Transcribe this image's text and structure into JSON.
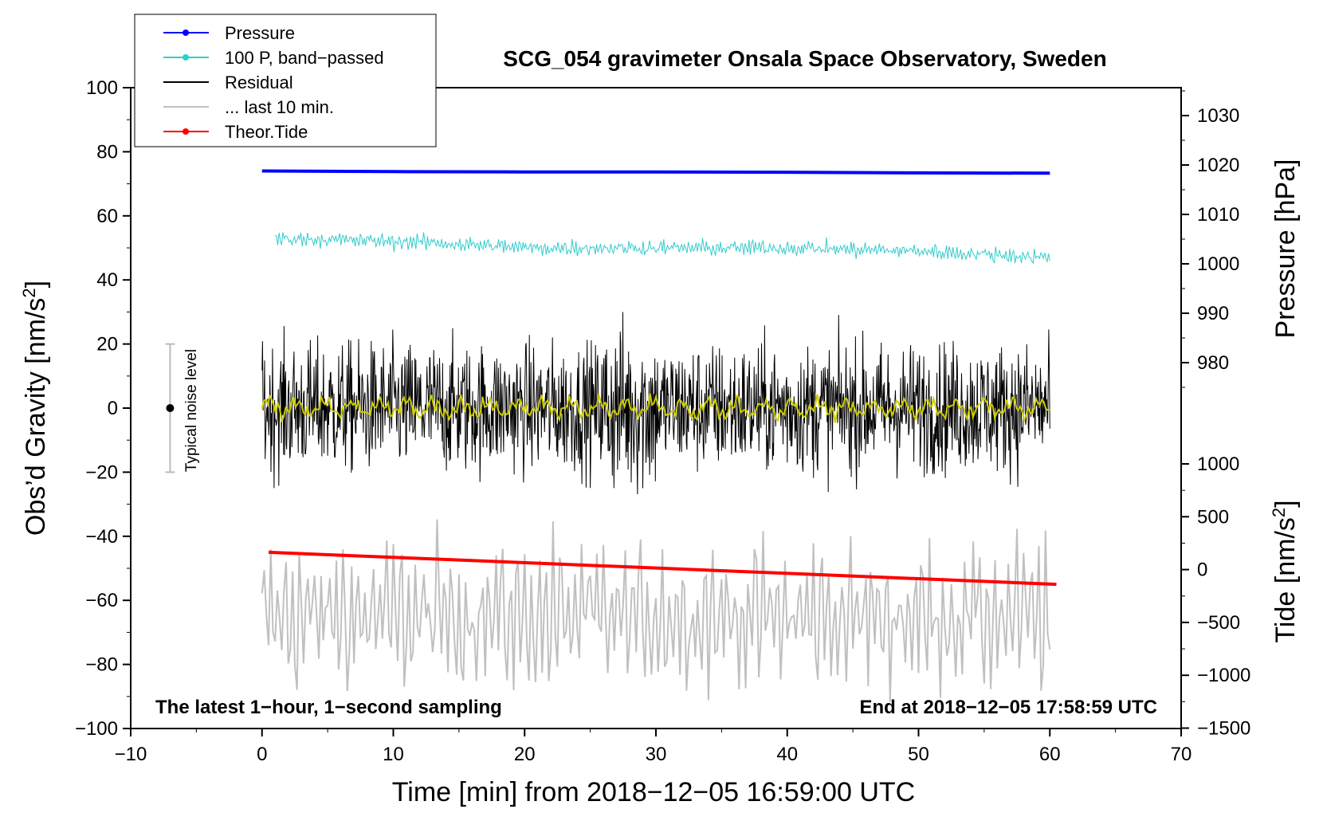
{
  "chart_data": {
    "type": "line",
    "title": "SCG_054 gravimeter Onsala Space Observatory, Sweden",
    "xlabel": "Time [min] from 2018−12−05 16:59:00 UTC",
    "ylabel": "Obs’d Gravity [nm/s",
    "ylabel_sup": "2",
    "ylabel_end": "]",
    "xlim": [
      -10,
      70
    ],
    "ylim": [
      -100,
      100
    ],
    "x_ticks": [
      "−10",
      "0",
      "10",
      "20",
      "30",
      "40",
      "50",
      "60",
      "70"
    ],
    "y_ticks": [
      "100",
      "80",
      "60",
      "40",
      "20",
      "0",
      "−20",
      "−40",
      "−60",
      "−80",
      "−100"
    ],
    "pressure_axis": {
      "label": "Pressure [hPa]",
      "ticks": [
        "1030",
        "1020",
        "1010",
        "1000",
        "990",
        "980"
      ]
    },
    "tide_axis": {
      "label": "Tide [nm/s",
      "label_sup": "2",
      "label_end": "]",
      "ticks": [
        "1000",
        "500",
        "0",
        "−500",
        "−1000",
        "−1500"
      ]
    },
    "legend": [
      {
        "label": "Pressure",
        "color": "#0000ff",
        "marker": true
      },
      {
        "label": "100 P, band−passed",
        "color": "#33cccc",
        "marker": true
      },
      {
        "label": "Residual",
        "color": "#000000",
        "marker": false
      },
      {
        "label": "... last 10 min.",
        "color": "#c0c0c0",
        "marker": false
      },
      {
        "label": "Theor.Tide",
        "color": "#ff0000",
        "marker": true
      }
    ],
    "noise_bar": {
      "label": "Typical noise level",
      "center": 0,
      "low": -20,
      "high": 20,
      "x": -7
    },
    "series": [
      {
        "name": "Pressure",
        "color": "#0000ff",
        "x": [
          0,
          10,
          20,
          30,
          40,
          50,
          60
        ],
        "values": [
          74.0,
          73.8,
          73.7,
          73.7,
          73.6,
          73.4,
          73.3
        ]
      },
      {
        "name": "100 P, band-passed",
        "color": "#33cccc",
        "x_range": [
          1,
          60
        ],
        "trend": [
          53,
          52,
          50,
          50,
          50,
          49,
          47
        ],
        "noise_amplitude": 2.2
      },
      {
        "name": "Residual",
        "color": "#000000",
        "x_range": [
          0,
          60
        ],
        "mean": 0,
        "noise_amplitude": 22
      },
      {
        "name": "Residual smoothed",
        "color": "#cccc00",
        "x_range": [
          0,
          60
        ],
        "mean": 0,
        "noise_amplitude": 3
      },
      {
        "name": "... last 10 min.",
        "color": "#c0c0c0",
        "x_range": [
          0,
          60
        ],
        "mean": -65,
        "noise_amplitude": 20
      },
      {
        "name": "Theor.Tide",
        "color": "#ff0000",
        "x": [
          0.5,
          60.5
        ],
        "values": [
          -45,
          -55
        ]
      }
    ]
  },
  "notes": {
    "left": "The latest 1−hour, 1−second sampling",
    "right": "End at 2018−12−05 17:58:59 UTC"
  },
  "colors": {
    "pressure": "#0000ff",
    "bandpassed": "#33cccc",
    "residual": "#000000",
    "smoothed": "#cccc00",
    "last10": "#c0c0c0",
    "tide": "#ff0000"
  }
}
